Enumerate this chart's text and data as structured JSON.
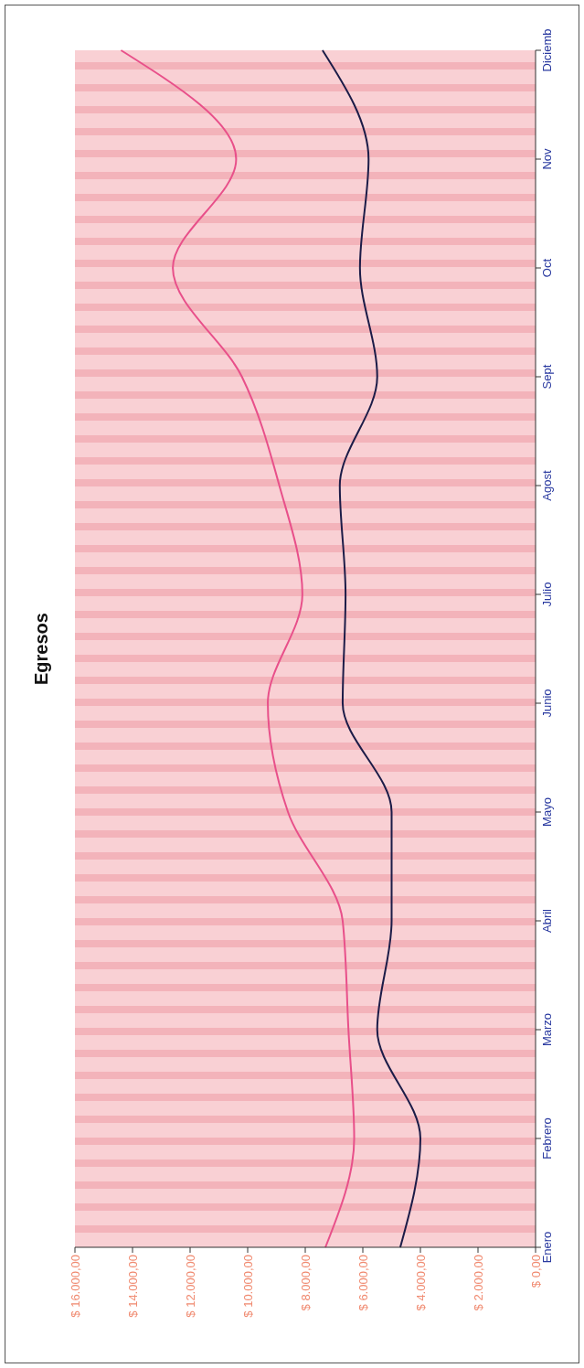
{
  "chart_data": {
    "type": "line",
    "title": "Egresos",
    "orientation": "horizontal",
    "categories": [
      "Diciemb",
      "Nov",
      "Oct",
      "Sept",
      "Agost",
      "Julio",
      "Junio",
      "Mayo",
      "Abril",
      "Marzo",
      "Febrero",
      "Enero"
    ],
    "series": [
      {
        "color": "#e8508a",
        "values": [
          14400,
          10400,
          12600,
          10200,
          8900,
          8100,
          9300,
          8600,
          6700,
          6500,
          6300,
          7300
        ]
      },
      {
        "color": "#1c1c48",
        "values": [
          7400,
          5800,
          6100,
          5500,
          6800,
          6600,
          6700,
          5000,
          5000,
          5500,
          4000,
          4700
        ]
      }
    ],
    "xlim": [
      16000,
      0
    ],
    "xticks": [
      {
        "value": 0,
        "label": "$ 0,00"
      },
      {
        "value": 2000,
        "label": "$ 2.000,00"
      },
      {
        "value": 4000,
        "label": "$ 4.000,00"
      },
      {
        "value": 6000,
        "label": "$ 6.000,00"
      },
      {
        "value": 8000,
        "label": "$ 8.000,00"
      },
      {
        "value": 10000,
        "label": "$ 10.000,00"
      },
      {
        "value": 12000,
        "label": "$ 12.000,00"
      },
      {
        "value": 14000,
        "label": "$ 14.000,00"
      },
      {
        "value": 16000,
        "label": "$ 16.000,00"
      }
    ],
    "marker": "none"
  }
}
